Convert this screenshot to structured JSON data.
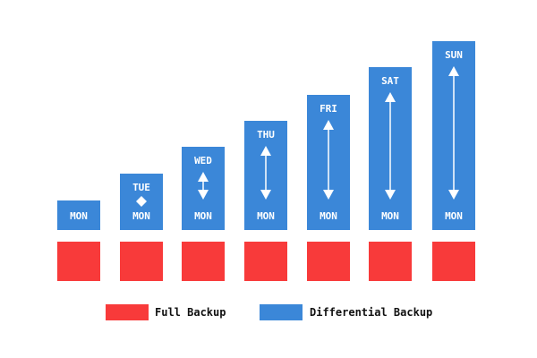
{
  "colors": {
    "full": "#f83a3a",
    "differential": "#3b87d8",
    "arrow": "#ffffff"
  },
  "base_label": "MON",
  "days": [
    {
      "label": "MON",
      "marker": "none"
    },
    {
      "label": "TUE",
      "marker": "diamond"
    },
    {
      "label": "WED",
      "marker": "arrows"
    },
    {
      "label": "THU",
      "marker": "arrows"
    },
    {
      "label": "FRI",
      "marker": "arrows"
    },
    {
      "label": "SAT",
      "marker": "arrows"
    },
    {
      "label": "SUN",
      "marker": "arrows"
    }
  ],
  "legend": {
    "full": "Full Backup",
    "differential": "Differential Backup"
  }
}
